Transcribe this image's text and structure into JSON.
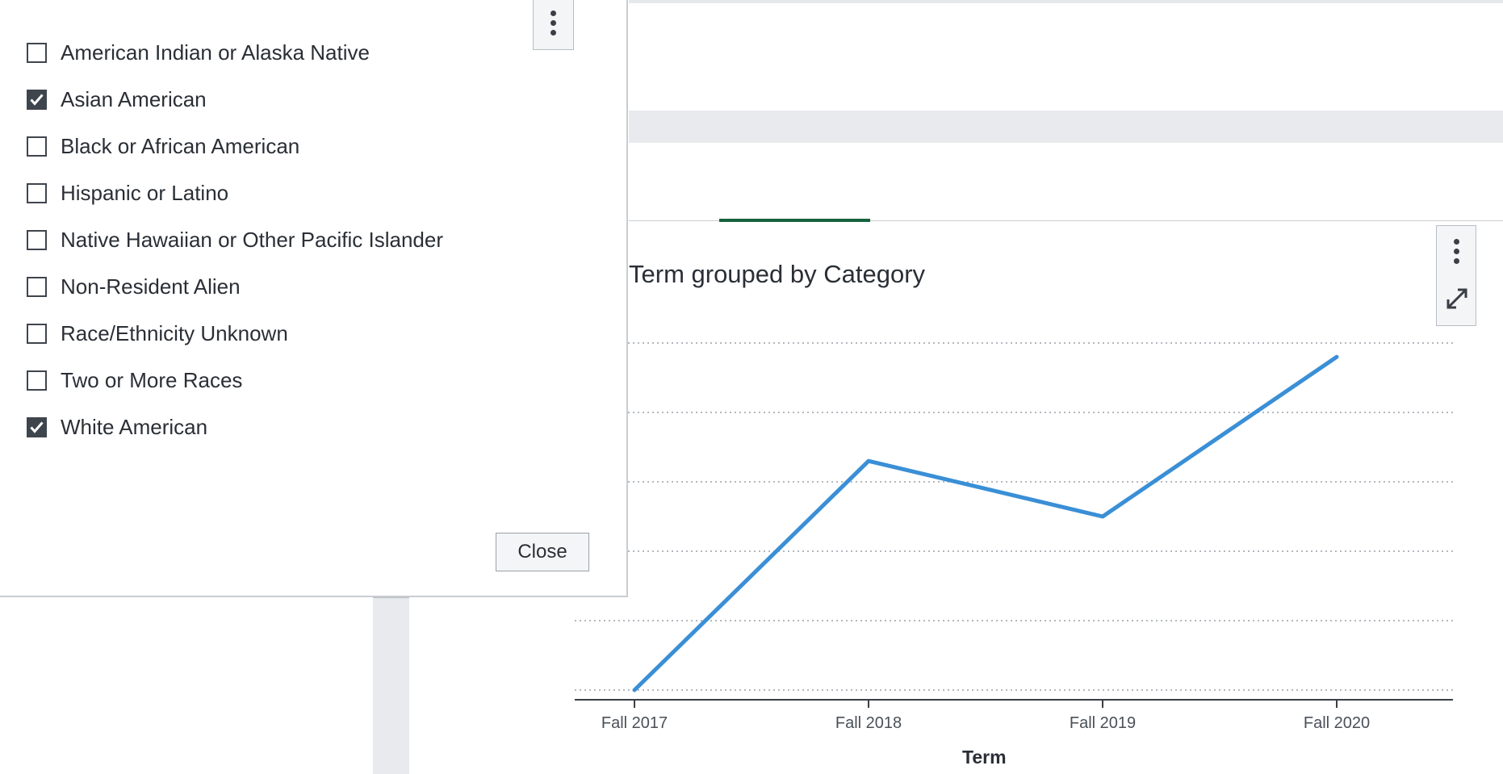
{
  "filter_panel": {
    "options": [
      {
        "label": "American Indian or Alaska Native",
        "checked": false
      },
      {
        "label": "Asian American",
        "checked": true
      },
      {
        "label": "Black or African American",
        "checked": false
      },
      {
        "label": "Hispanic or Latino",
        "checked": false
      },
      {
        "label": "Native Hawaiian or Other Pacific Islander",
        "checked": false
      },
      {
        "label": "Non-Resident Alien",
        "checked": false
      },
      {
        "label": "Race/Ethnicity Unknown",
        "checked": false
      },
      {
        "label": "Two or More Races",
        "checked": false
      },
      {
        "label": "White American",
        "checked": true
      }
    ],
    "close_label": "Close"
  },
  "chart_data": {
    "type": "line",
    "title": "Term grouped by Category",
    "xlabel": "Term",
    "ylabel": "",
    "categories": [
      "Fall 2017",
      "Fall 2018",
      "Fall 2019",
      "Fall 2020"
    ],
    "series": [
      {
        "color": "#3a8fd6",
        "values": [
          0,
          3.3,
          2.5,
          4.8
        ]
      }
    ],
    "ylim": [
      0,
      5
    ],
    "grid": true
  },
  "colors": {
    "accent": "#16623c",
    "line": "#3a8fd6",
    "checkbox": "#3f454d"
  }
}
